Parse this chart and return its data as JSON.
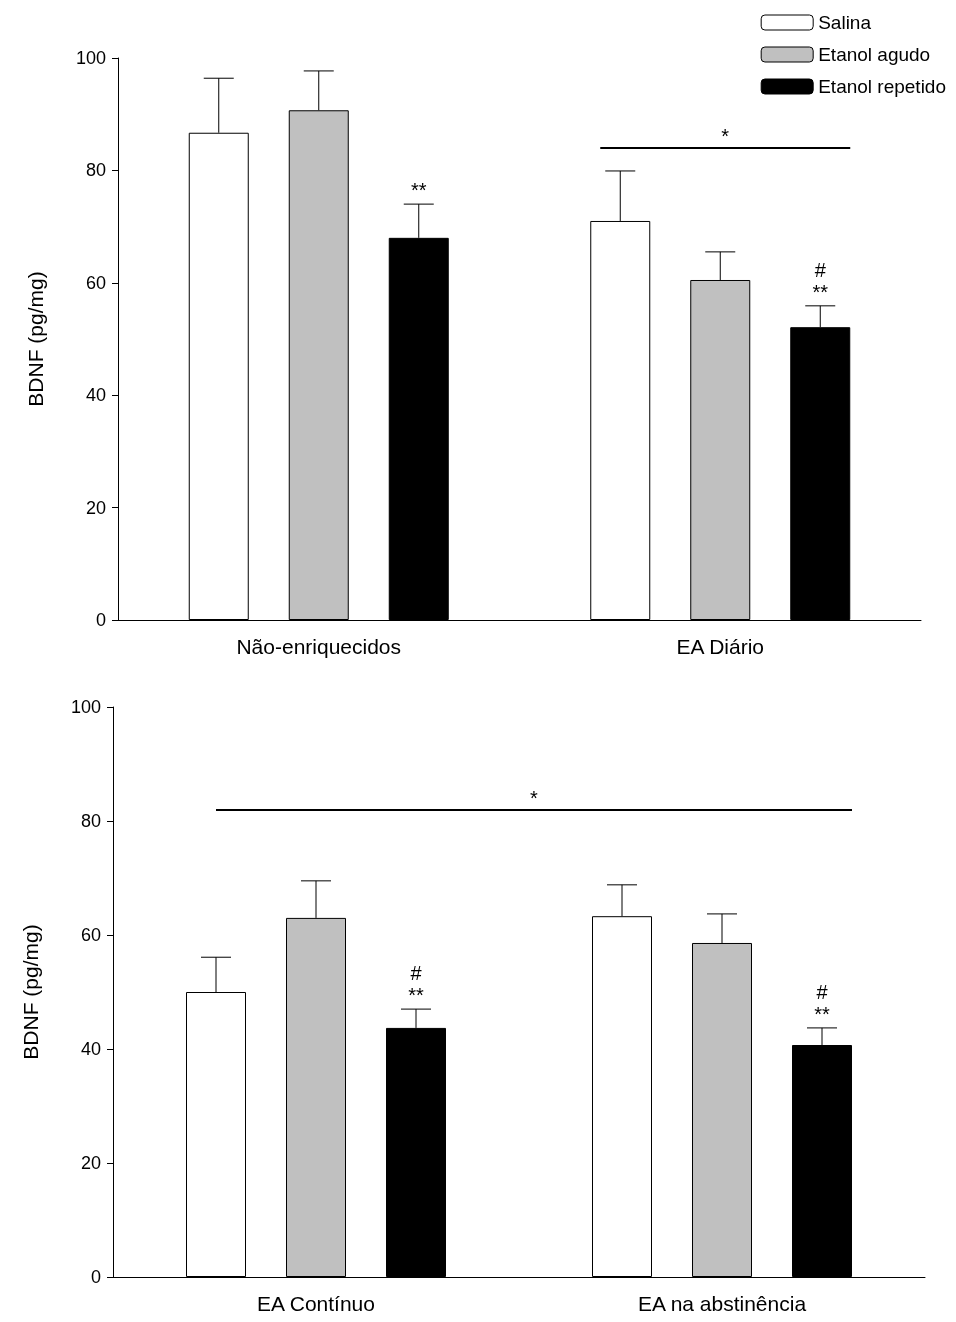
{
  "chart_data": [
    {
      "type": "bar",
      "categories": [
        "Não-enriquecidos",
        "EA Diário"
      ],
      "ylabel": "BDNF (pg/mg)",
      "ylim": [
        0,
        100
      ],
      "yticks": [
        0,
        20,
        40,
        60,
        80,
        100
      ],
      "legend": "top right",
      "series": [
        {
          "name": "Salina",
          "color": "#ffffff",
          "values": [
            86.7,
            71.0
          ],
          "errors": [
            [
              86.7,
              96.4
            ],
            [
              71.0,
              79.9
            ]
          ]
        },
        {
          "name": "Etanol agudo",
          "color": "#c0c0c0",
          "values": [
            90.7,
            60.5
          ],
          "errors": [
            [
              90.7,
              97.7
            ],
            [
              60.5,
              65.5
            ]
          ]
        },
        {
          "name": "Etanol repetido",
          "color": "#000000",
          "values": [
            68.0,
            52.1
          ],
          "errors": [
            [
              68.0,
              74.0
            ],
            [
              52.1,
              55.9
            ]
          ],
          "value_labels": [
            "**",
            "#\n**"
          ]
        }
      ],
      "ref_lines": [
        {
          "axis": "y",
          "value": 84,
          "label": "*"
        }
      ]
    },
    {
      "type": "bar",
      "categories": [
        "EA Contínuo",
        "EA na abstinência"
      ],
      "ylabel": "BDNF (pg/mg)",
      "ylim": [
        0,
        100
      ],
      "yticks": [
        0,
        20,
        40,
        60,
        80,
        100
      ],
      "series": [
        {
          "color": "#ffffff",
          "values": [
            50.0,
            63.3
          ],
          "errors": [
            [
              50.0,
              56.1
            ],
            [
              63.3,
              68.8
            ]
          ]
        },
        {
          "color": "#c0c0c0",
          "values": [
            63.0,
            58.6
          ],
          "errors": [
            [
              63.0,
              69.5
            ],
            [
              58.6,
              63.7
            ]
          ]
        },
        {
          "color": "#000000",
          "values": [
            43.7,
            40.7
          ],
          "errors": [
            [
              43.7,
              47.0
            ],
            [
              40.7,
              43.7
            ]
          ],
          "value_labels": [
            "#\n**",
            "#\n**"
          ]
        }
      ],
      "ref_lines": [
        {
          "axis": "y",
          "value": 82,
          "label": "*"
        }
      ]
    }
  ]
}
